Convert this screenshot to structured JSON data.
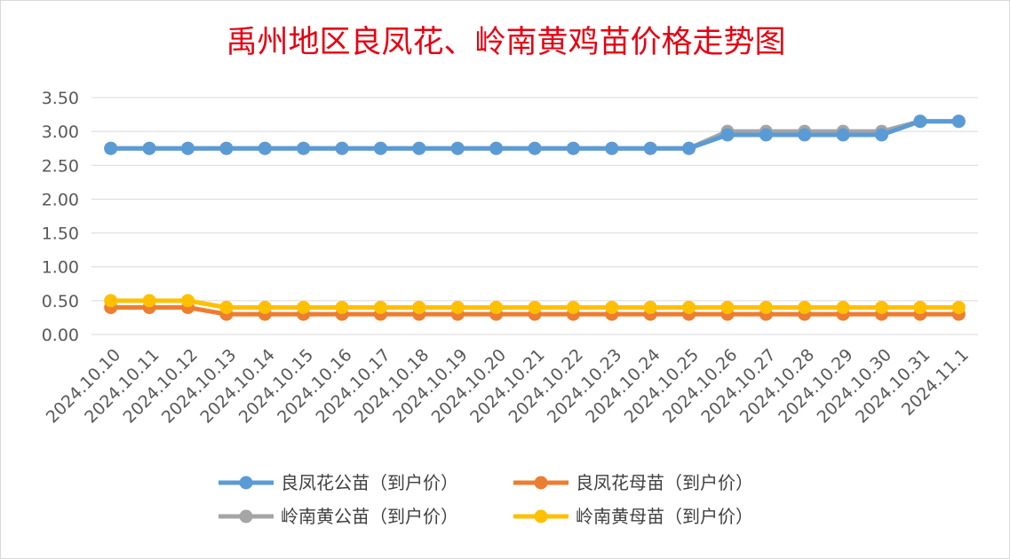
{
  "chart_data": {
    "type": "line",
    "title": "禹州地区良凤花、岭南黄鸡苗价格走势图",
    "xlabel": "",
    "ylabel": "",
    "ylim": [
      0,
      3.5
    ],
    "yticks": [
      "0.00",
      "0.50",
      "1.00",
      "1.50",
      "2.00",
      "2.50",
      "3.00",
      "3.50"
    ],
    "grid": true,
    "legend_position": "bottom",
    "categories": [
      "2024.10.10",
      "2024.10.11",
      "2024.10.12",
      "2024.10.13",
      "2024.10.14",
      "2024.10.15",
      "2024.10.16",
      "2024.10.17",
      "2024.10.18",
      "2024.10.19",
      "2024.10.20",
      "2024.10.21",
      "2024.10.22",
      "2024.10.23",
      "2024.10.24",
      "2024.10.25",
      "2024.10.26",
      "2024.10.27",
      "2024.10.28",
      "2024.10.29",
      "2024.10.30",
      "2024.10.31",
      "2024.11.1"
    ],
    "series": [
      {
        "name": "良凤花公苗（到户价）",
        "color": "#5b9bd5",
        "values": [
          2.75,
          2.75,
          2.75,
          2.75,
          2.75,
          2.75,
          2.75,
          2.75,
          2.75,
          2.75,
          2.75,
          2.75,
          2.75,
          2.75,
          2.75,
          2.75,
          2.95,
          2.95,
          2.95,
          2.95,
          2.95,
          3.15,
          3.15
        ]
      },
      {
        "name": "良凤花母苗（到户价）",
        "color": "#ed7d31",
        "values": [
          0.4,
          0.4,
          0.4,
          0.3,
          0.3,
          0.3,
          0.3,
          0.3,
          0.3,
          0.3,
          0.3,
          0.3,
          0.3,
          0.3,
          0.3,
          0.3,
          0.3,
          0.3,
          0.3,
          0.3,
          0.3,
          0.3,
          0.3
        ]
      },
      {
        "name": "岭南黄公苗（到户价）",
        "color": "#a5a5a5",
        "values": [
          2.75,
          2.75,
          2.75,
          2.75,
          2.75,
          2.75,
          2.75,
          2.75,
          2.75,
          2.75,
          2.75,
          2.75,
          2.75,
          2.75,
          2.75,
          2.75,
          3.0,
          3.0,
          3.0,
          3.0,
          3.0,
          3.15,
          3.15
        ]
      },
      {
        "name": "岭南黄母苗（到户价）",
        "color": "#ffc000",
        "values": [
          0.5,
          0.5,
          0.5,
          0.4,
          0.4,
          0.4,
          0.4,
          0.4,
          0.4,
          0.4,
          0.4,
          0.4,
          0.4,
          0.4,
          0.4,
          0.4,
          0.4,
          0.4,
          0.4,
          0.4,
          0.4,
          0.4,
          0.4
        ]
      }
    ]
  }
}
